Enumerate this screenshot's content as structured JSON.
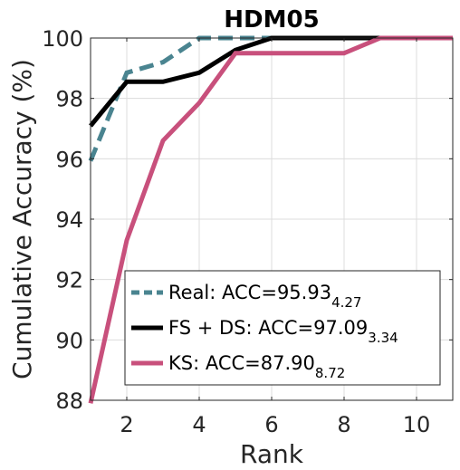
{
  "chart_data": {
    "type": "line",
    "title": "HDM05",
    "xlabel": "Rank",
    "ylabel": "Cumulative Accuracy (%)",
    "xlim": [
      1,
      11
    ],
    "ylim": [
      88,
      100
    ],
    "x_ticks": [
      2,
      4,
      6,
      8,
      10
    ],
    "y_ticks": [
      88,
      90,
      92,
      94,
      96,
      98,
      100
    ],
    "grid": true,
    "legend_position": "bottom-right",
    "x": [
      1,
      2,
      3,
      4,
      5,
      6,
      7,
      8,
      9,
      10,
      11
    ],
    "series": [
      {
        "name": "Real: ACC=95.93",
        "subscript": "4.27",
        "color": "#4a8490",
        "style": "dashed",
        "values": [
          95.93,
          98.85,
          99.2,
          100,
          100,
          100,
          100,
          100,
          100,
          100,
          100
        ]
      },
      {
        "name": "FS + DS: ACC=97.09",
        "subscript": "3.34",
        "color": "#000000",
        "style": "solid",
        "values": [
          97.09,
          98.55,
          98.55,
          98.85,
          99.6,
          100,
          100,
          100,
          100,
          100,
          100
        ]
      },
      {
        "name": "KS: ACC=87.90",
        "subscript": "8.72",
        "color": "#c8507c",
        "style": "solid",
        "values": [
          87.9,
          93.3,
          96.6,
          97.85,
          99.5,
          99.5,
          99.5,
          99.5,
          100,
          100,
          100
        ]
      }
    ]
  }
}
